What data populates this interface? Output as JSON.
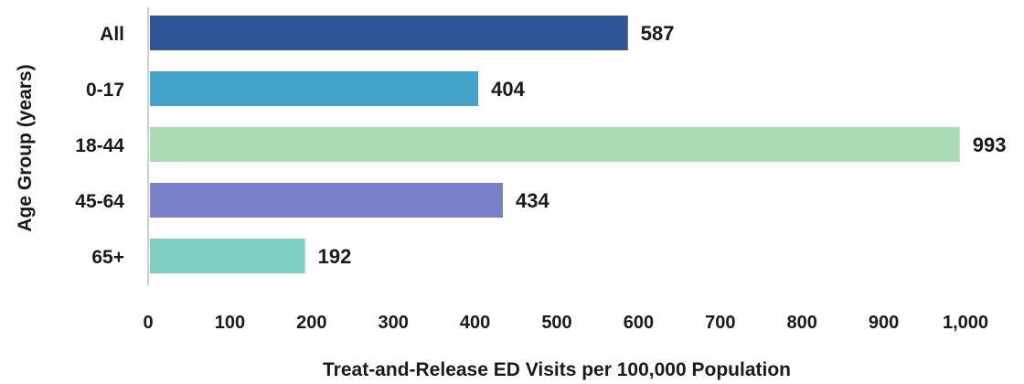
{
  "chart_data": {
    "type": "bar",
    "orientation": "horizontal",
    "title": "",
    "xlabel": "Treat-and-Release ED Visits per 100,000 Population",
    "ylabel": "Age Group (years)",
    "xlim": [
      0,
      1000
    ],
    "xticks": [
      0,
      100,
      200,
      300,
      400,
      500,
      600,
      700,
      800,
      900,
      1000
    ],
    "xtick_labels": [
      "0",
      "100",
      "200",
      "300",
      "400",
      "500",
      "600",
      "700",
      "800",
      "900",
      "1,000"
    ],
    "categories": [
      "All",
      "0-17",
      "18-44",
      "45-64",
      "65+"
    ],
    "values": [
      587,
      404,
      993,
      434,
      192
    ],
    "value_labels": [
      "587",
      "404",
      "993",
      "434",
      "192"
    ],
    "colors": [
      "#2e5597",
      "#43a3cb",
      "#a9dcb5",
      "#7a80c7",
      "#7dcfc3"
    ],
    "grid": false,
    "legend": "none"
  }
}
